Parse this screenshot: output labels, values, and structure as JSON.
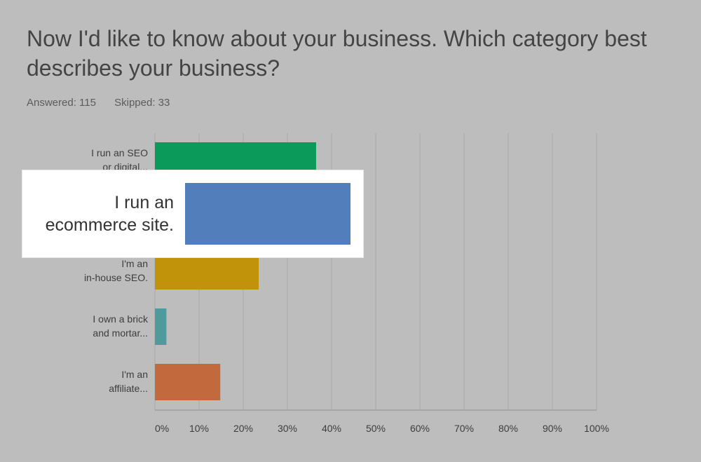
{
  "question": {
    "title": "Now I'd like to know about your business. Which category best describes your business?"
  },
  "stats": {
    "answered": "Answered: 115",
    "skipped": "Skipped: 33"
  },
  "colors": {
    "seo_agency": "#0b9a5a",
    "ecommerce": "#527ebb",
    "inhouse": "#c0930b",
    "brick": "#4f9a9d",
    "affiliate": "#c26a3d",
    "gridline": "#a9a9a9"
  },
  "highlight": {
    "label_line1": "I run an",
    "label_line2": "ecommerce site.",
    "value": 44.3
  },
  "chart_data": {
    "type": "bar",
    "orientation": "horizontal",
    "categories": [
      [
        "I run an SEO",
        "or digital..."
      ],
      [
        "I run an",
        "ecommerce site."
      ],
      [
        "I'm an",
        "in-house SEO."
      ],
      [
        "I own a brick",
        "and mortar..."
      ],
      [
        "I'm an",
        "affiliate..."
      ]
    ],
    "values": [
      36.5,
      44.3,
      23.5,
      2.6,
      14.8
    ],
    "xlim": [
      0,
      100
    ],
    "xticks": [
      "0%",
      "10%",
      "20%",
      "30%",
      "40%",
      "50%",
      "60%",
      "70%",
      "80%",
      "90%",
      "100%"
    ],
    "grid": true
  }
}
